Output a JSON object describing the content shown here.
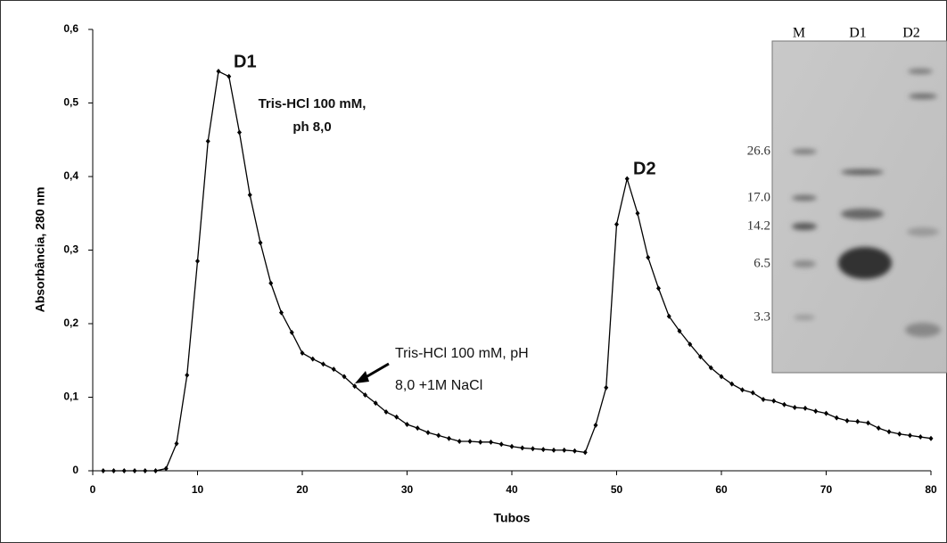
{
  "chart_data": {
    "type": "line",
    "x_label": "Tubos",
    "y_label": "Absorbância, 280 nm",
    "x": [
      1,
      2,
      3,
      4,
      5,
      6,
      7,
      8,
      9,
      10,
      11,
      12,
      13,
      14,
      15,
      16,
      17,
      18,
      19,
      20,
      21,
      22,
      23,
      24,
      25,
      26,
      27,
      28,
      29,
      30,
      31,
      32,
      33,
      34,
      35,
      36,
      37,
      38,
      39,
      40,
      41,
      42,
      43,
      44,
      45,
      46,
      47,
      48,
      49,
      50,
      51,
      52,
      53,
      54,
      55,
      56,
      57,
      58,
      59,
      60,
      61,
      62,
      63,
      64,
      65,
      66,
      67,
      68,
      69,
      70,
      71,
      72,
      73,
      74,
      75,
      76,
      77,
      78,
      79,
      80
    ],
    "series": [
      {
        "color": "#000000",
        "values": [
          0,
          0,
          0,
          0,
          0,
          0,
          0.003,
          0.037,
          0.13,
          0.285,
          0.448,
          0.543,
          0.536,
          0.46,
          0.375,
          0.31,
          0.255,
          0.215,
          0.188,
          0.16,
          0.152,
          0.145,
          0.138,
          0.128,
          0.115,
          0.103,
          0.092,
          0.08,
          0.073,
          0.063,
          0.058,
          0.052,
          0.048,
          0.044,
          0.04,
          0.04,
          0.039,
          0.039,
          0.036,
          0.033,
          0.031,
          0.03,
          0.029,
          0.028,
          0.028,
          0.027,
          0.025,
          0.062,
          0.113,
          0.335,
          0.397,
          0.35,
          0.29,
          0.248,
          0.21,
          0.19,
          0.172,
          0.155,
          0.14,
          0.128,
          0.118,
          0.11,
          0.106,
          0.097,
          0.095,
          0.09,
          0.086,
          0.085,
          0.081,
          0.078,
          0.072,
          0.068,
          0.067,
          0.065,
          0.058,
          0.053,
          0.05,
          0.048,
          0.046,
          0.044
        ]
      }
    ],
    "xlim": [
      0,
      80
    ],
    "xticks": [
      0,
      10,
      20,
      30,
      40,
      50,
      60,
      70,
      80
    ],
    "ylim": [
      0,
      0.6
    ],
    "yticks": [
      0,
      {
        "value": 0.1,
        "label": "0,1"
      },
      {
        "value": 0.2,
        "label": "0,2"
      },
      {
        "value": 0.3,
        "label": "0,3"
      },
      {
        "value": 0.4,
        "label": "0,4"
      },
      {
        "value": 0.5,
        "label": "0,5"
      },
      {
        "value": 0.6,
        "label": "0,6"
      }
    ],
    "annotations": [
      "D1",
      "D2",
      "Tris-HCl 100 mM,",
      "ph 8,0",
      "Tris-HCl 100 mM, pH",
      "8,0 +1M NaCl"
    ],
    "inset": {
      "lanes": [
        "M",
        "D1",
        "D2"
      ],
      "markers": [
        "26.6",
        "17.0",
        "14.2",
        "6.5",
        "3.3"
      ]
    }
  }
}
